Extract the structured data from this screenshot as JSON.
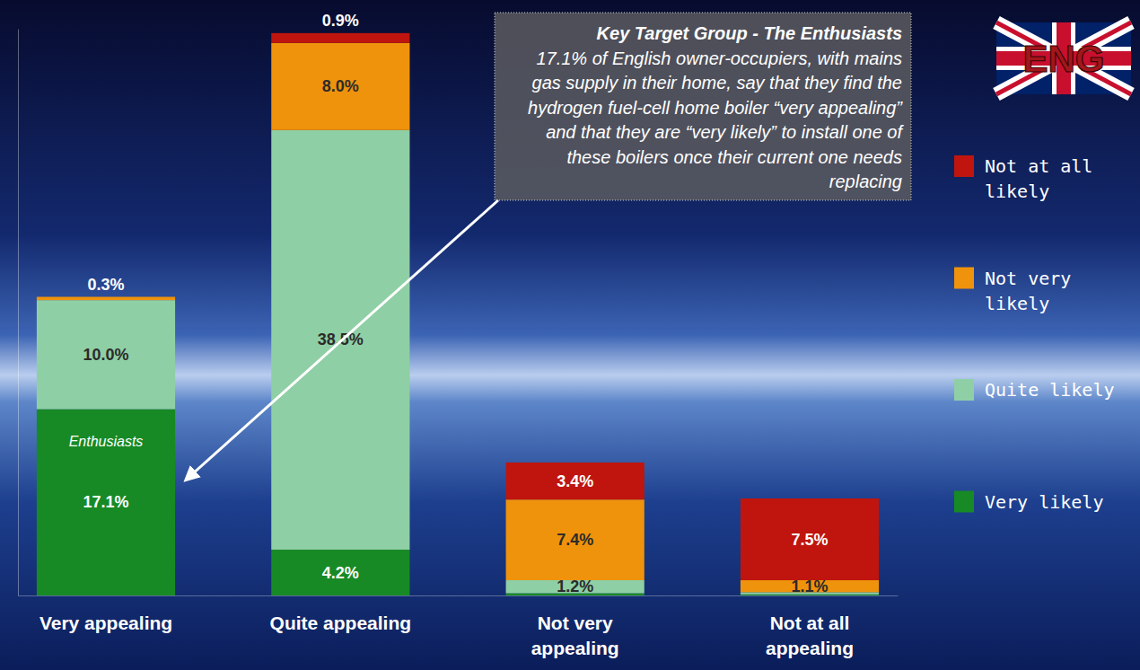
{
  "chart_data": {
    "type": "bar",
    "stacked": true,
    "data_labels": true,
    "tick_labels": "x",
    "legend": "right",
    "categories": [
      "Very appealing",
      "Quite appealing",
      "Not very appealing",
      "Not at all appealing"
    ],
    "ylim": [
      0,
      52
    ],
    "series": [
      {
        "name": "Very likely",
        "color": "#178a25",
        "values": [
          17.1,
          4.2,
          0.2,
          0.1
        ],
        "value_labels": [
          "17.1%",
          "4.2%",
          null,
          null
        ]
      },
      {
        "name": "Quite likely",
        "color": "#8fcfa5",
        "values": [
          10.0,
          38.5,
          1.2,
          0.2
        ],
        "value_labels": [
          "10.0%",
          "38.5%",
          "1.2%",
          null
        ]
      },
      {
        "name": "Not very likely",
        "color": "#ef930c",
        "values": [
          0.3,
          8.0,
          7.4,
          1.1
        ],
        "value_labels": [
          "0.3%",
          "8.0%",
          "7.4%",
          "1.1%"
        ]
      },
      {
        "name": "Not at all likely",
        "color": "#bf150e",
        "values": [
          0,
          0.9,
          3.4,
          7.5
        ],
        "value_labels": [
          null,
          "0.9%",
          "3.4%",
          "7.5%"
        ]
      }
    ],
    "annotations": [
      {
        "title": "Key Target Group - The Enthusiasts",
        "text": "17.1% of English owner-occupiers, with mains gas supply in their home, say that they find the hydrogen fuel-cell home boiler “very appealing” and that they are “very likely” to install one of these boilers once their current one needs replacing"
      },
      {
        "text": "Enthusiasts"
      },
      {
        "text": "ENG"
      }
    ]
  }
}
